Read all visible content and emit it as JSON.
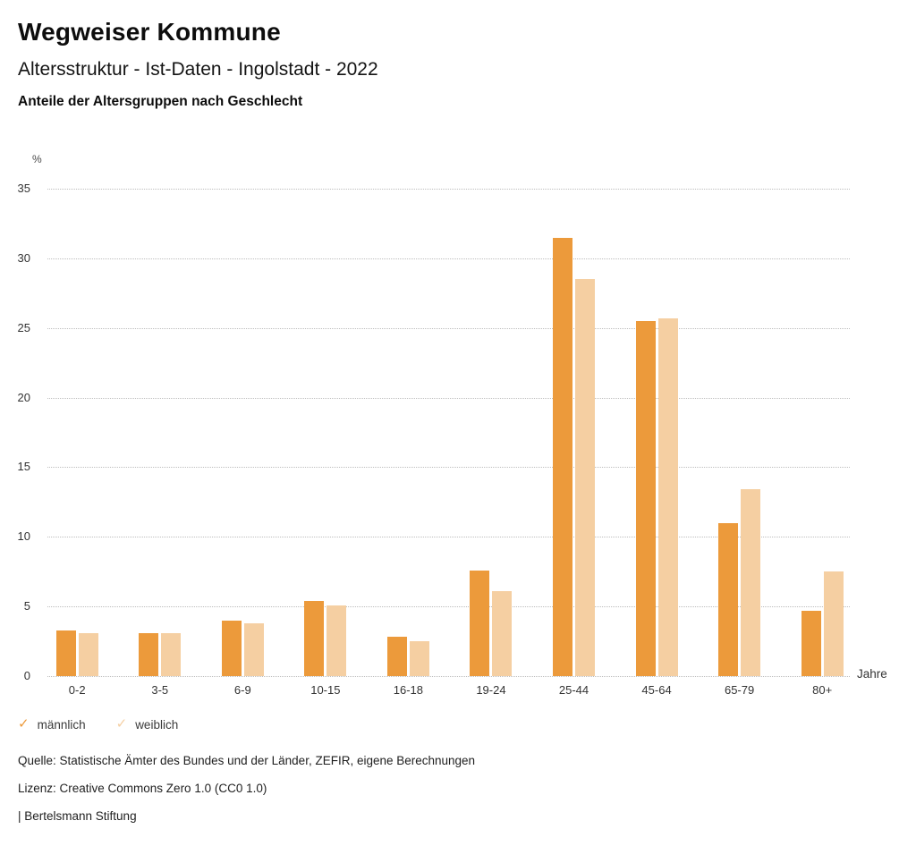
{
  "header": {
    "title": "Wegweiser Kommune",
    "subtitle": "Altersstruktur - Ist-Daten - Ingolstadt - 2022",
    "chart_heading": "Anteile der Altersgruppen nach Geschlecht"
  },
  "chart_data": {
    "type": "bar",
    "title": "Anteile der Altersgruppen nach Geschlecht",
    "categories": [
      "0-2",
      "3-5",
      "6-9",
      "10-15",
      "16-18",
      "19-24",
      "25-44",
      "45-64",
      "65-79",
      "80+"
    ],
    "series": [
      {
        "name": "männlich",
        "color": "#EC9A3B",
        "values": [
          3.3,
          3.1,
          4.0,
          5.4,
          2.8,
          7.6,
          31.5,
          25.5,
          11.0,
          4.7
        ]
      },
      {
        "name": "weiblich",
        "color": "#F5CFA2",
        "values": [
          3.1,
          3.1,
          3.8,
          5.1,
          2.5,
          6.1,
          28.5,
          25.7,
          13.4,
          7.5
        ]
      }
    ],
    "ylabel": "%",
    "xlabel": "Jahre",
    "ylim": [
      0,
      35
    ],
    "ytick_step": 5,
    "yticks": [
      0,
      5,
      10,
      15,
      20,
      25,
      30,
      35
    ],
    "grid": true,
    "gridline_style": "dotted",
    "legend_position": "bottom-left",
    "legend_marker": "✓"
  },
  "footer": {
    "source": "Quelle: Statistische Ämter des Bundes und der Länder, ZEFIR, eigene Berechnungen",
    "license": "Lizenz: Creative Commons Zero 1.0 (CC0 1.0)",
    "brand": "| Bertelsmann Stiftung"
  }
}
